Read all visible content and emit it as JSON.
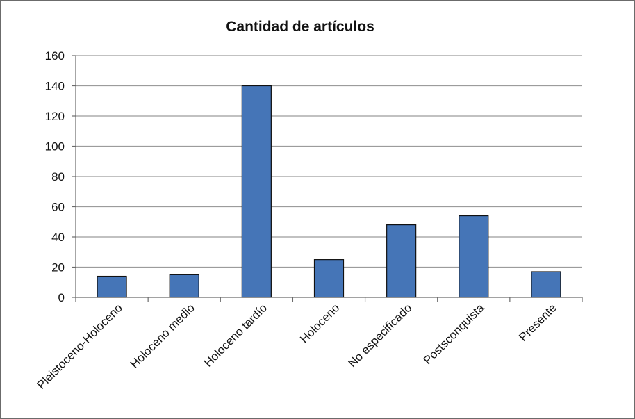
{
  "chart_data": {
    "type": "bar",
    "title": "Cantidad de artículos",
    "xlabel": "",
    "ylabel": "",
    "categories": [
      "Pleistoceno-Holoceno",
      "Holoceno medio",
      "Holoceno tardío",
      "Holoceno",
      "No especificado",
      "Postsconquista",
      "Presente"
    ],
    "values": [
      14,
      15,
      140,
      25,
      48,
      54,
      17
    ],
    "ylim": [
      0,
      160
    ],
    "yticks": [
      0,
      20,
      40,
      60,
      80,
      100,
      120,
      140,
      160
    ],
    "grid": true,
    "legend": "none",
    "colors": {
      "bar": "#4575b7",
      "bar_stroke": "#111111",
      "grid": "#9c9c9c",
      "axis": "#6b6b6b"
    }
  }
}
